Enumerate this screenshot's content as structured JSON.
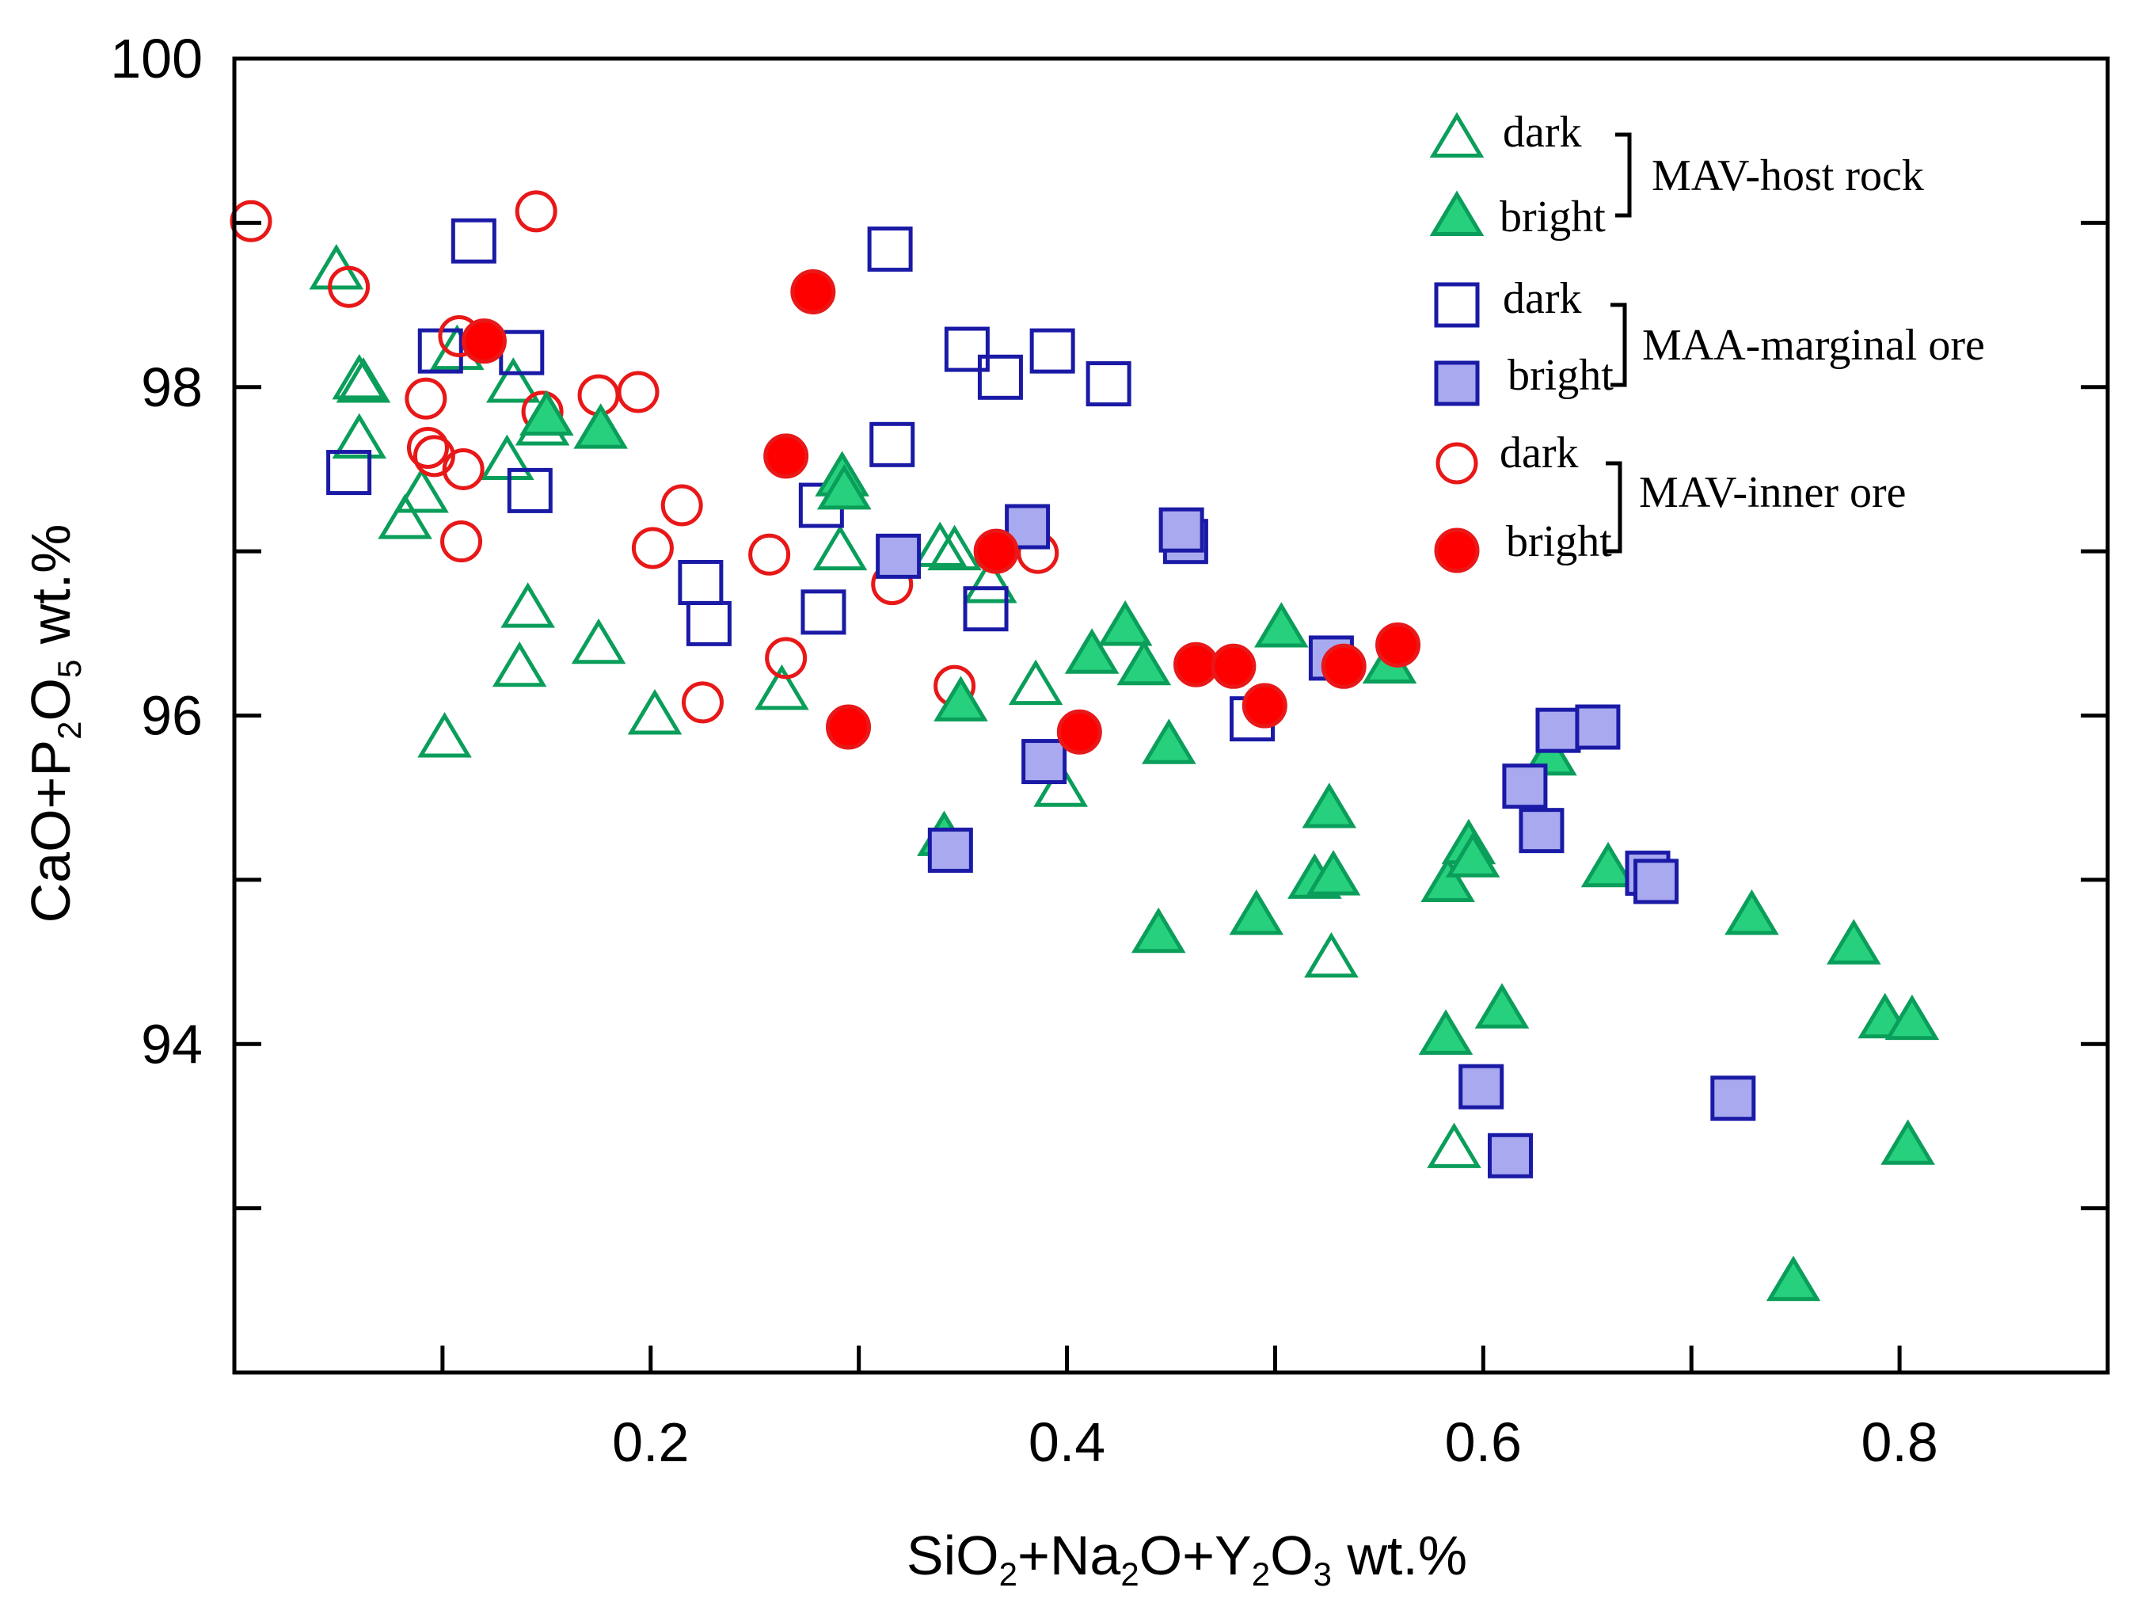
{
  "chart_data": {
    "type": "scatter",
    "title": "",
    "xlabel": "SiO2+Na2O+Y2O3 wt.%",
    "ylabel": "CaO+P2O5 wt.%",
    "xlabel_parts": [
      {
        "t": "SiO",
        "sub": false
      },
      {
        "t": "2",
        "sub": true
      },
      {
        "t": "+Na",
        "sub": false
      },
      {
        "t": "2",
        "sub": true
      },
      {
        "t": "O+Y",
        "sub": false
      },
      {
        "t": "2",
        "sub": true
      },
      {
        "t": "O",
        "sub": false
      },
      {
        "t": "3",
        "sub": true
      },
      {
        "t": " wt.%",
        "sub": false
      }
    ],
    "ylabel_parts": [
      {
        "t": "CaO+P",
        "sub": false
      },
      {
        "t": "2",
        "sub": true
      },
      {
        "t": "O",
        "sub": false
      },
      {
        "t": "5",
        "sub": true
      },
      {
        "t": " wt.%",
        "sub": false
      }
    ],
    "xlim": [
      0,
      0.9
    ],
    "ylim": [
      92,
      100
    ],
    "x_ticks": [
      0.1,
      0.2,
      0.3,
      0.4,
      0.5,
      0.6,
      0.7,
      0.8,
      0.9
    ],
    "x_tick_labels": [
      {
        "v": 0.2,
        "label": "0.2"
      },
      {
        "v": 0.4,
        "label": "0.4"
      },
      {
        "v": 0.6,
        "label": "0.6"
      },
      {
        "v": 0.8,
        "label": "0.8"
      }
    ],
    "y_ticks": [
      93,
      94,
      95,
      96,
      97,
      98,
      99
    ],
    "y_tick_labels": [
      {
        "v": 94,
        "label": "94"
      },
      {
        "v": 96,
        "label": "96"
      },
      {
        "v": 98,
        "label": "98"
      },
      {
        "v": 100,
        "label": "100"
      }
    ],
    "grid": false,
    "legend_position": "top-right",
    "legend_groups": [
      {
        "bracket_label": "MAV-host rock",
        "entries": [
          "dark",
          "bright"
        ]
      },
      {
        "bracket_label": "MAA-marginal ore",
        "entries": [
          "dark",
          "bright"
        ]
      },
      {
        "bracket_label": "MAV-inner ore",
        "entries": [
          "dark",
          "bright"
        ]
      }
    ],
    "colors": {
      "green_stroke": "#0a9e5a",
      "green_fill": "#26d07c",
      "blue_stroke": "#1a1aa6",
      "blue_fill": "#a9a9f0",
      "red_stroke": "#e81818",
      "red_fill": "#ff0000"
    },
    "series": [
      {
        "name": "MAV-host rock dark",
        "label": "dark",
        "marker": "triangle",
        "filled": false,
        "points": [
          [
            0.049,
            98.71
          ],
          [
            0.06,
            98.04
          ],
          [
            0.062,
            98.02
          ],
          [
            0.06,
            97.68
          ],
          [
            0.082,
            97.19
          ],
          [
            0.09,
            97.35
          ],
          [
            0.101,
            95.86
          ],
          [
            0.107,
            98.22
          ],
          [
            0.131,
            97.55
          ],
          [
            0.134,
            98.02
          ],
          [
            0.137,
            96.29
          ],
          [
            0.141,
            96.65
          ],
          [
            0.148,
            97.76
          ],
          [
            0.175,
            96.43
          ],
          [
            0.202,
            96.0
          ],
          [
            0.263,
            96.15
          ],
          [
            0.291,
            97.0
          ],
          [
            0.339,
            97.02
          ],
          [
            0.346,
            97.0
          ],
          [
            0.363,
            96.8
          ],
          [
            0.385,
            96.18
          ],
          [
            0.397,
            95.56
          ],
          [
            0.527,
            94.52
          ],
          [
            0.586,
            93.36
          ]
        ]
      },
      {
        "name": "MAV-host rock bright",
        "label": "bright",
        "marker": "triangle",
        "filled": true,
        "points": [
          [
            0.15,
            97.82
          ],
          [
            0.176,
            97.74
          ],
          [
            0.292,
            97.45
          ],
          [
            0.293,
            97.37
          ],
          [
            0.341,
            95.26
          ],
          [
            0.349,
            96.08
          ],
          [
            0.412,
            96.37
          ],
          [
            0.428,
            96.54
          ],
          [
            0.437,
            96.3
          ],
          [
            0.449,
            95.82
          ],
          [
            0.444,
            94.67
          ],
          [
            0.491,
            94.78
          ],
          [
            0.503,
            96.53
          ],
          [
            0.519,
            95.0
          ],
          [
            0.526,
            95.43
          ],
          [
            0.528,
            95.02
          ],
          [
            0.555,
            96.31
          ],
          [
            0.583,
            94.98
          ],
          [
            0.582,
            94.05
          ],
          [
            0.593,
            95.21
          ],
          [
            0.595,
            95.13
          ],
          [
            0.609,
            94.21
          ],
          [
            0.632,
            95.75
          ],
          [
            0.66,
            95.07
          ],
          [
            0.729,
            94.78
          ],
          [
            0.749,
            92.55
          ],
          [
            0.778,
            94.6
          ],
          [
            0.793,
            94.15
          ],
          [
            0.806,
            94.14
          ],
          [
            0.804,
            93.38
          ]
        ]
      },
      {
        "name": "MAA-marginal ore dark",
        "label": "dark",
        "marker": "square",
        "filled": false,
        "points": [
          [
            0.055,
            97.48
          ],
          [
            0.099,
            98.22
          ],
          [
            0.115,
            98.89
          ],
          [
            0.138,
            98.21
          ],
          [
            0.142,
            97.37
          ],
          [
            0.224,
            96.81
          ],
          [
            0.228,
            96.56
          ],
          [
            0.282,
            97.28
          ],
          [
            0.283,
            96.63
          ],
          [
            0.315,
            98.84
          ],
          [
            0.316,
            97.65
          ],
          [
            0.352,
            98.23
          ],
          [
            0.368,
            98.06
          ],
          [
            0.361,
            96.65
          ],
          [
            0.393,
            98.22
          ],
          [
            0.42,
            98.02
          ],
          [
            0.489,
            95.98
          ]
        ]
      },
      {
        "name": "MAA-marginal ore bright",
        "label": "bright",
        "marker": "square",
        "filled": true,
        "points": [
          [
            0.319,
            96.97
          ],
          [
            0.344,
            95.18
          ],
          [
            0.381,
            97.15
          ],
          [
            0.389,
            95.72
          ],
          [
            0.457,
            97.06
          ],
          [
            0.455,
            97.13
          ],
          [
            0.527,
            96.35
          ],
          [
            0.599,
            93.74
          ],
          [
            0.613,
            93.32
          ],
          [
            0.62,
            95.57
          ],
          [
            0.628,
            95.3
          ],
          [
            0.636,
            95.91
          ],
          [
            0.655,
            95.93
          ],
          [
            0.679,
            95.04
          ],
          [
            0.683,
            94.99
          ],
          [
            0.72,
            93.67
          ]
        ]
      },
      {
        "name": "MAV-inner ore dark",
        "label": "dark",
        "marker": "circle",
        "filled": false,
        "points": [
          [
            0.008,
            99.01
          ],
          [
            0.055,
            98.61
          ],
          [
            0.092,
            97.93
          ],
          [
            0.093,
            97.63
          ],
          [
            0.096,
            97.58
          ],
          [
            0.108,
            98.31
          ],
          [
            0.109,
            97.06
          ],
          [
            0.11,
            97.5
          ],
          [
            0.145,
            99.07
          ],
          [
            0.148,
            97.85
          ],
          [
            0.175,
            97.95
          ],
          [
            0.194,
            97.97
          ],
          [
            0.201,
            97.02
          ],
          [
            0.215,
            97.28
          ],
          [
            0.225,
            96.08
          ],
          [
            0.257,
            96.98
          ],
          [
            0.265,
            96.35
          ],
          [
            0.316,
            96.8
          ],
          [
            0.346,
            96.18
          ],
          [
            0.386,
            96.99
          ]
        ]
      },
      {
        "name": "MAV-inner ore bright",
        "label": "bright",
        "marker": "circle",
        "filled": true,
        "points": [
          [
            0.12,
            98.28
          ],
          [
            0.265,
            97.58
          ],
          [
            0.278,
            98.58
          ],
          [
            0.295,
            95.93
          ],
          [
            0.366,
            97.0
          ],
          [
            0.406,
            95.9
          ],
          [
            0.462,
            96.31
          ],
          [
            0.48,
            96.3
          ],
          [
            0.495,
            96.06
          ],
          [
            0.533,
            96.3
          ],
          [
            0.559,
            96.43
          ]
        ]
      }
    ]
  }
}
